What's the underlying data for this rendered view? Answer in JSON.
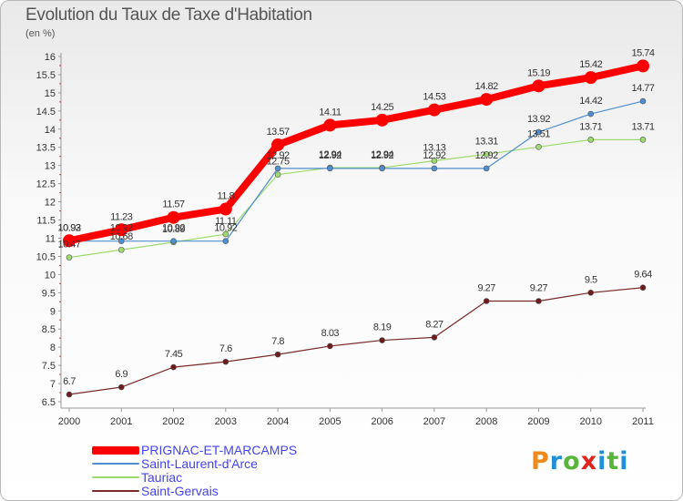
{
  "title": "Evolution du Taux de Taxe d'Habitation",
  "subtitle": "(en %)",
  "logo": [
    "P",
    "r",
    "o",
    "x",
    "i",
    "t",
    "i"
  ],
  "colors": {
    "logo": [
      "#f08a1c",
      "#1f8fd6",
      "#56b53a",
      "#e0241b",
      "#1f8fd6",
      "#56b53a",
      "#1f8fd6"
    ]
  },
  "chart_data": {
    "type": "line",
    "categories": [
      "2000",
      "2001",
      "2002",
      "2003",
      "2004",
      "2005",
      "2006",
      "2007",
      "2008",
      "2009",
      "2010",
      "2011"
    ],
    "ylim": [
      6.5,
      16
    ],
    "yticks": [
      6.5,
      7,
      7.5,
      8,
      8.5,
      9,
      9.5,
      10,
      10.5,
      11,
      11.5,
      12,
      12.5,
      13,
      13.5,
      14,
      14.5,
      15,
      15.5,
      16
    ],
    "grid": false,
    "legend_position": "bottom",
    "series": [
      {
        "name": "PRIGNAC-ET-MARCAMPS",
        "color": "#ff0000",
        "values": [
          10.93,
          11.23,
          11.57,
          11.8,
          13.57,
          14.11,
          14.25,
          14.53,
          14.82,
          15.19,
          15.42,
          15.74
        ],
        "labels": [
          "10.93",
          "11.23",
          "11.57",
          "11.8",
          "13.57",
          "14.11",
          "14.25",
          "14.53",
          "14.82",
          "15.19",
          "15.42",
          "15.74"
        ]
      },
      {
        "name": "Saint-Laurent-d'Arce",
        "color": "#4f8ed0",
        "values": [
          10.92,
          10.92,
          10.92,
          10.92,
          12.92,
          12.92,
          12.92,
          12.92,
          12.92,
          13.92,
          14.42,
          14.77
        ],
        "labels": [
          "10.92",
          "10.92",
          "10.92",
          "10.92",
          "12.92",
          "12.92",
          "12.92",
          "12.92",
          "12.92",
          "13.92",
          "14.42",
          "14.77"
        ]
      },
      {
        "name": "Tauriac",
        "color": "#9ddb6e",
        "values": [
          10.47,
          10.68,
          10.89,
          11.11,
          12.75,
          12.94,
          12.94,
          13.13,
          13.31,
          13.51,
          13.71,
          13.71
        ],
        "labels": [
          "10.47",
          "10.68",
          "10.89",
          "11.11",
          "12.75",
          "12.94",
          "12.94",
          "13.13",
          "13.31",
          "13.51",
          "13.71",
          "13.71"
        ]
      },
      {
        "name": "Saint-Gervais",
        "color": "#7a2a2a",
        "values": [
          6.7,
          6.9,
          7.45,
          7.6,
          7.8,
          8.03,
          8.19,
          8.27,
          9.27,
          9.27,
          9.5,
          9.64
        ],
        "labels": [
          "6.7",
          "6.9",
          "7.45",
          "7.6",
          "7.8",
          "8.03",
          "8.19",
          "8.27",
          "9.27",
          "9.27",
          "9.5",
          "9.64"
        ]
      }
    ]
  }
}
